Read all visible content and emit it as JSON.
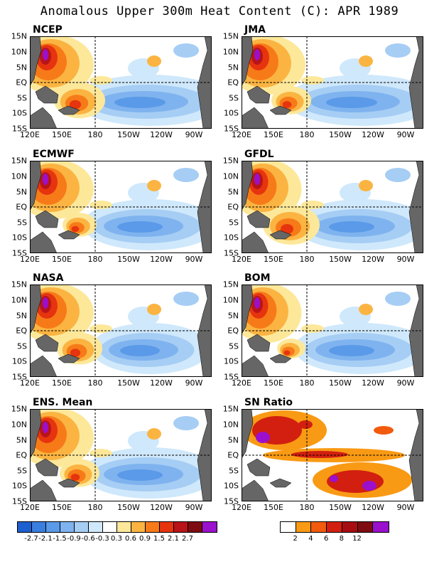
{
  "title": "Anomalous Upper 300m Heat Content (C): APR 1989",
  "y_ticks": [
    "15N",
    "10N",
    "5N",
    "EQ",
    "5S",
    "10S",
    "15S"
  ],
  "x_ticks": [
    "120E",
    "150E",
    "180",
    "150W",
    "120W",
    "90W"
  ],
  "panels": [
    {
      "label": "NCEP",
      "warm_west": 1.0,
      "warm_sw": 0.9,
      "cold_east": 0.9
    },
    {
      "label": "JMA",
      "warm_west": 1.0,
      "warm_sw": 0.7,
      "cold_east": 0.9
    },
    {
      "label": "ECMWF",
      "warm_west": 1.0,
      "warm_sw": 0.6,
      "cold_east": 0.8
    },
    {
      "label": "GFDL",
      "warm_west": 0.9,
      "warm_sw": 1.0,
      "cold_east": 0.8
    },
    {
      "label": "NASA",
      "warm_west": 1.0,
      "warm_sw": 0.8,
      "cold_east": 0.7
    },
    {
      "label": "BOM",
      "warm_west": 0.9,
      "warm_sw": 0.5,
      "cold_east": 0.8
    },
    {
      "label": "ENS. Mean",
      "warm_west": 1.0,
      "warm_sw": 0.7,
      "cold_east": 0.8
    },
    {
      "label": "SN Ratio",
      "type": "sn"
    }
  ],
  "anomaly_colorbar": {
    "colors": [
      "#1e5fcf",
      "#3a7fe0",
      "#5a9ae8",
      "#7fb3ef",
      "#a6cdf4",
      "#cfe8fb",
      "#ffffff",
      "#fde89a",
      "#fbb442",
      "#f77a18",
      "#e6340f",
      "#b8141a",
      "#7e0c10",
      "#9a10cc"
    ],
    "labels": [
      "-2.7",
      "-2.1",
      "-1.5",
      "-0.9",
      "-0.6",
      "-0.3",
      "0.3",
      "0.6",
      "0.9",
      "1.5",
      "2.1",
      "2.7"
    ]
  },
  "sn_colorbar": {
    "colors": [
      "#ffffff",
      "#f99a14",
      "#f25a0e",
      "#d21f10",
      "#a80d12",
      "#7e0c10",
      "#9a10cc"
    ],
    "labels": [
      "2",
      "4",
      "6",
      "8",
      "12"
    ]
  },
  "colors": {
    "land": "#666666",
    "ocean_white": "#ffffff"
  }
}
